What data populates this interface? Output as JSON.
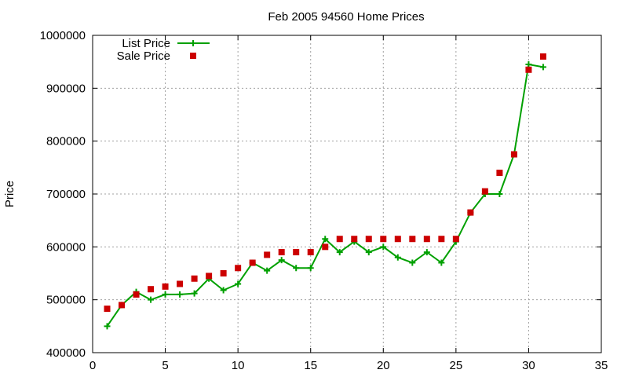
{
  "chart_data": {
    "type": "line",
    "title": "Feb 2005 94560 Home Prices",
    "xlabel": "",
    "ylabel": "Price",
    "xlim": [
      0,
      35
    ],
    "ylim": [
      400000,
      1000000
    ],
    "xticks": [
      0,
      5,
      10,
      15,
      20,
      25,
      30,
      35
    ],
    "yticks": [
      400000,
      500000,
      600000,
      700000,
      800000,
      900000,
      1000000
    ],
    "grid": true,
    "legend_position": "top-left",
    "series": [
      {
        "name": "List Price",
        "style": "line+cross",
        "color": "#00a000",
        "points": [
          [
            1,
            450000
          ],
          [
            2,
            490000
          ],
          [
            3,
            515000
          ],
          [
            4,
            500000
          ],
          [
            5,
            510000
          ],
          [
            6,
            510000
          ],
          [
            7,
            512000
          ],
          [
            8,
            540000
          ],
          [
            9,
            518000
          ],
          [
            10,
            530000
          ],
          [
            11,
            570000
          ],
          [
            12,
            555000
          ],
          [
            13,
            575000
          ],
          [
            14,
            560000
          ],
          [
            15,
            560000
          ],
          [
            16,
            615000
          ],
          [
            17,
            590000
          ],
          [
            18,
            610000
          ],
          [
            19,
            590000
          ],
          [
            20,
            600000
          ],
          [
            21,
            580000
          ],
          [
            22,
            570000
          ],
          [
            23,
            590000
          ],
          [
            24,
            570000
          ],
          [
            25,
            610000
          ],
          [
            26,
            665000
          ],
          [
            27,
            700000
          ],
          [
            28,
            700000
          ],
          [
            29,
            775000
          ],
          [
            30,
            945000
          ],
          [
            31,
            940000
          ]
        ]
      },
      {
        "name": "Sale Price",
        "style": "square",
        "color": "#cc0000",
        "points": [
          [
            1,
            483000
          ],
          [
            2,
            490000
          ],
          [
            3,
            510000
          ],
          [
            4,
            520000
          ],
          [
            5,
            525000
          ],
          [
            6,
            530000
          ],
          [
            7,
            540000
          ],
          [
            8,
            545000
          ],
          [
            9,
            550000
          ],
          [
            10,
            560000
          ],
          [
            11,
            570000
          ],
          [
            12,
            585000
          ],
          [
            13,
            590000
          ],
          [
            14,
            590000
          ],
          [
            15,
            590000
          ],
          [
            16,
            600000
          ],
          [
            17,
            615000
          ],
          [
            18,
            615000
          ],
          [
            19,
            615000
          ],
          [
            20,
            615000
          ],
          [
            21,
            615000
          ],
          [
            22,
            615000
          ],
          [
            23,
            615000
          ],
          [
            24,
            615000
          ],
          [
            25,
            615000
          ],
          [
            26,
            665000
          ],
          [
            27,
            705000
          ],
          [
            28,
            740000
          ],
          [
            29,
            775000
          ],
          [
            30,
            935000
          ],
          [
            31,
            960000
          ]
        ]
      }
    ]
  }
}
